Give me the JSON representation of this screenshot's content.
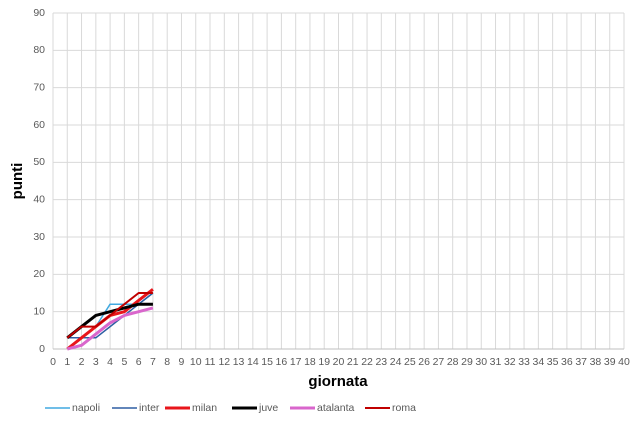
{
  "chart_data": {
    "type": "line",
    "x_label": "giornata",
    "y_label": "punti",
    "x": [
      1,
      2,
      3,
      4,
      5,
      6,
      7
    ],
    "series": [
      {
        "name": "napoli",
        "color": "#41a9e0",
        "values": [
          3,
          3,
          6,
          12,
          12,
          12,
          15
        ]
      },
      {
        "name": "inter",
        "color": "#2e5fa3",
        "values": [
          3,
          3,
          3,
          6,
          9,
          12,
          15
        ]
      },
      {
        "name": "milan",
        "color": "#e8151b",
        "values": [
          0,
          3,
          6,
          9,
          10,
          13,
          16
        ]
      },
      {
        "name": "juve",
        "color": "#000000",
        "values": [
          3,
          6,
          9,
          10,
          11,
          12,
          12
        ]
      },
      {
        "name": "atalanta",
        "color": "#d966cc",
        "values": [
          0,
          1,
          4,
          7,
          9,
          10,
          11
        ]
      },
      {
        "name": "roma",
        "color": "#c00000",
        "values": [
          3,
          6,
          6,
          9,
          12,
          15,
          15
        ]
      }
    ],
    "xlim": [
      0,
      40
    ],
    "xticks": [
      0,
      1,
      2,
      3,
      4,
      5,
      6,
      7,
      8,
      9,
      10,
      11,
      12,
      13,
      14,
      15,
      16,
      17,
      18,
      19,
      20,
      21,
      22,
      23,
      24,
      25,
      26,
      27,
      28,
      29,
      30,
      31,
      32,
      33,
      34,
      35,
      36,
      37,
      38,
      39,
      40
    ],
    "ylim": [
      0,
      90
    ],
    "yticks": [
      0,
      10,
      20,
      30,
      40,
      50,
      60,
      70,
      80,
      90
    ],
    "grid": true,
    "legend": "bottom"
  }
}
